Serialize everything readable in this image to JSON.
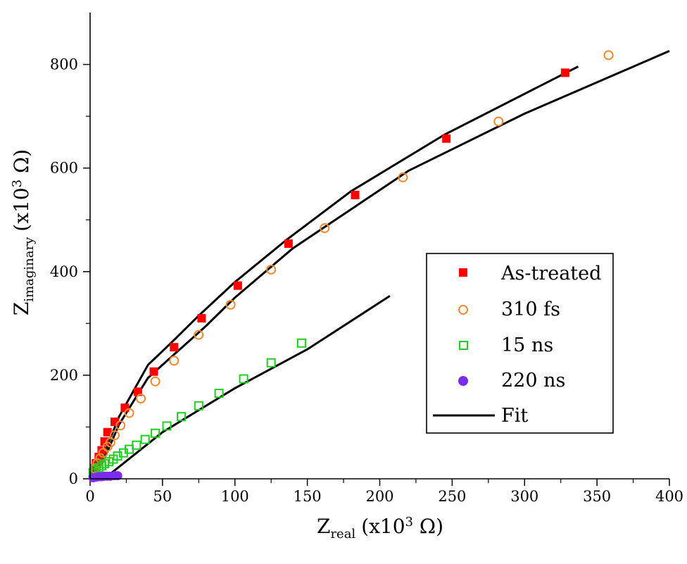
{
  "chart_data": {
    "type": "scatter",
    "xlabel": {
      "main": "Z",
      "sub": "real",
      "tail": "(x10",
      "sup": "3",
      "end": " Ω)"
    },
    "ylabel": {
      "main": "Z",
      "sub": "imaginary",
      "tail": "(x10",
      "sup": "3",
      "end": " Ω)"
    },
    "xlim": [
      0,
      400
    ],
    "ylim": [
      0,
      900
    ],
    "xticks": [
      0,
      50,
      100,
      150,
      200,
      250,
      300,
      350,
      400
    ],
    "yticks": [
      0,
      200,
      400,
      600,
      800
    ],
    "grid": false,
    "legend_position": "right",
    "series": [
      {
        "name": "As-treated",
        "marker": "filled-square",
        "color": "#ff0000",
        "points": [
          [
            2,
            12
          ],
          [
            3,
            20
          ],
          [
            4,
            30
          ],
          [
            6,
            42
          ],
          [
            8,
            55
          ],
          [
            10,
            72
          ],
          [
            12,
            90
          ],
          [
            17,
            110
          ],
          [
            24,
            137
          ],
          [
            33,
            168
          ],
          [
            44,
            207
          ],
          [
            58,
            254
          ],
          [
            77,
            310
          ],
          [
            102,
            373
          ],
          [
            137,
            454
          ],
          [
            183,
            548
          ],
          [
            246,
            657
          ],
          [
            328,
            784
          ]
        ]
      },
      {
        "name": "310 fs",
        "marker": "open-circle",
        "color": "#f08a30",
        "points": [
          [
            3,
            20
          ],
          [
            5,
            30
          ],
          [
            7,
            40
          ],
          [
            9,
            50
          ],
          [
            12,
            62
          ],
          [
            14,
            70
          ],
          [
            17,
            84
          ],
          [
            21,
            103
          ],
          [
            27,
            127
          ],
          [
            35,
            155
          ],
          [
            45,
            188
          ],
          [
            58,
            228
          ],
          [
            75,
            278
          ],
          [
            97,
            336
          ],
          [
            125,
            404
          ],
          [
            162,
            484
          ],
          [
            216,
            582
          ],
          [
            282,
            690
          ],
          [
            358,
            818
          ]
        ]
      },
      {
        "name": "15 ns",
        "marker": "open-square",
        "color": "#22cc22",
        "points": [
          [
            2,
            12
          ],
          [
            4,
            17
          ],
          [
            6,
            21
          ],
          [
            8,
            25
          ],
          [
            10,
            29
          ],
          [
            13,
            33
          ],
          [
            16,
            38
          ],
          [
            19,
            44
          ],
          [
            23,
            50
          ],
          [
            27,
            57
          ],
          [
            32,
            65
          ],
          [
            38,
            76
          ],
          [
            45,
            88
          ],
          [
            53,
            102
          ],
          [
            63,
            120
          ],
          [
            75,
            141
          ],
          [
            89,
            165
          ],
          [
            106,
            193
          ],
          [
            125,
            224
          ],
          [
            146,
            262
          ]
        ]
      },
      {
        "name": "220 ns",
        "marker": "filled-circle",
        "color": "#7a2cf0",
        "points": [
          [
            2,
            2
          ],
          [
            4,
            3
          ],
          [
            6,
            4
          ],
          [
            8,
            4
          ],
          [
            10,
            5
          ],
          [
            12,
            5
          ],
          [
            14,
            5
          ],
          [
            17,
            6
          ],
          [
            19,
            6
          ]
        ]
      },
      {
        "name": "Fit",
        "marker": "line",
        "color": "#000000",
        "fits": [
          [
            [
              4,
              12
            ],
            [
              10,
              50
            ],
            [
              20,
              120
            ],
            [
              40,
              220
            ],
            [
              55,
              260
            ],
            [
              75,
              315
            ],
            [
              100,
              380
            ],
            [
              135,
              460
            ],
            [
              180,
              555
            ],
            [
              245,
              665
            ],
            [
              337,
              796
            ]
          ],
          [
            [
              4,
              8
            ],
            [
              10,
              40
            ],
            [
              20,
              105
            ],
            [
              40,
              195
            ],
            [
              60,
              245
            ],
            [
              80,
              295
            ],
            [
              100,
              350
            ],
            [
              140,
              445
            ],
            [
              180,
              520
            ],
            [
              220,
              595
            ],
            [
              300,
              705
            ],
            [
              400,
              826
            ]
          ],
          [
            [
              2,
              4
            ],
            [
              15,
              12
            ],
            [
              50,
              90
            ],
            [
              100,
              175
            ],
            [
              150,
              250
            ],
            [
              207,
              353
            ]
          ],
          [
            [
              0,
              1
            ],
            [
              10,
              3
            ],
            [
              22,
              5
            ]
          ]
        ]
      }
    ]
  }
}
